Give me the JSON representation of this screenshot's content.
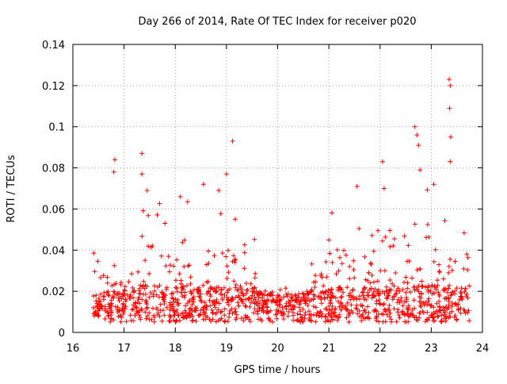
{
  "chart_data": {
    "type": "scatter",
    "title": "Day 266 of 2014, Rate Of TEC Index for receiver p020",
    "xlabel": "GPS time / hours",
    "ylabel": "ROTI / TECUs",
    "xlim": [
      16,
      24
    ],
    "ylim": [
      0,
      0.14
    ],
    "x_ticks": [
      16,
      17,
      18,
      19,
      20,
      21,
      22,
      23,
      24
    ],
    "x_tick_labels": [
      "16",
      "17",
      "18",
      "19",
      "20",
      "21",
      "22",
      "23",
      "24"
    ],
    "y_ticks": [
      0,
      0.02,
      0.04,
      0.06,
      0.08,
      0.1,
      0.12,
      0.14
    ],
    "y_tick_labels": [
      "0",
      "0.02",
      "0.04",
      "0.06",
      "0.08",
      "0.1",
      "0.12",
      "0.14"
    ],
    "grid": true,
    "marker": "+",
    "color": "#ff0000",
    "x_range_observed": [
      16.4,
      23.75
    ],
    "notable_points": [
      {
        "x": 16.82,
        "y": 0.084
      },
      {
        "x": 16.8,
        "y": 0.078
      },
      {
        "x": 17.35,
        "y": 0.087
      },
      {
        "x": 17.35,
        "y": 0.077
      },
      {
        "x": 17.45,
        "y": 0.069
      },
      {
        "x": 18.1,
        "y": 0.066
      },
      {
        "x": 18.55,
        "y": 0.072
      },
      {
        "x": 18.85,
        "y": 0.069
      },
      {
        "x": 19.0,
        "y": 0.077
      },
      {
        "x": 19.12,
        "y": 0.093
      },
      {
        "x": 21.55,
        "y": 0.071
      },
      {
        "x": 22.05,
        "y": 0.083
      },
      {
        "x": 22.08,
        "y": 0.07
      },
      {
        "x": 22.68,
        "y": 0.1
      },
      {
        "x": 22.72,
        "y": 0.096
      },
      {
        "x": 22.75,
        "y": 0.091
      },
      {
        "x": 22.78,
        "y": 0.079
      },
      {
        "x": 23.05,
        "y": 0.072
      },
      {
        "x": 23.35,
        "y": 0.123
      },
      {
        "x": 23.37,
        "y": 0.12
      },
      {
        "x": 23.36,
        "y": 0.109
      },
      {
        "x": 23.38,
        "y": 0.095
      },
      {
        "x": 23.37,
        "y": 0.083
      }
    ],
    "activity_profile": [
      {
        "start": 16.4,
        "end": 16.9,
        "base": 0.012,
        "max": 0.045
      },
      {
        "start": 16.9,
        "end": 17.3,
        "base": 0.012,
        "max": 0.03
      },
      {
        "start": 17.3,
        "end": 18.3,
        "base": 0.014,
        "max": 0.065
      },
      {
        "start": 18.3,
        "end": 18.6,
        "base": 0.012,
        "max": 0.03
      },
      {
        "start": 18.6,
        "end": 19.6,
        "base": 0.013,
        "max": 0.06
      },
      {
        "start": 19.6,
        "end": 20.6,
        "base": 0.01,
        "max": 0.022
      },
      {
        "start": 20.6,
        "end": 21.0,
        "base": 0.012,
        "max": 0.045
      },
      {
        "start": 21.0,
        "end": 21.7,
        "base": 0.013,
        "max": 0.06
      },
      {
        "start": 21.7,
        "end": 22.6,
        "base": 0.013,
        "max": 0.05
      },
      {
        "start": 22.6,
        "end": 23.1,
        "base": 0.014,
        "max": 0.07
      },
      {
        "start": 23.1,
        "end": 23.75,
        "base": 0.014,
        "max": 0.06
      }
    ]
  }
}
